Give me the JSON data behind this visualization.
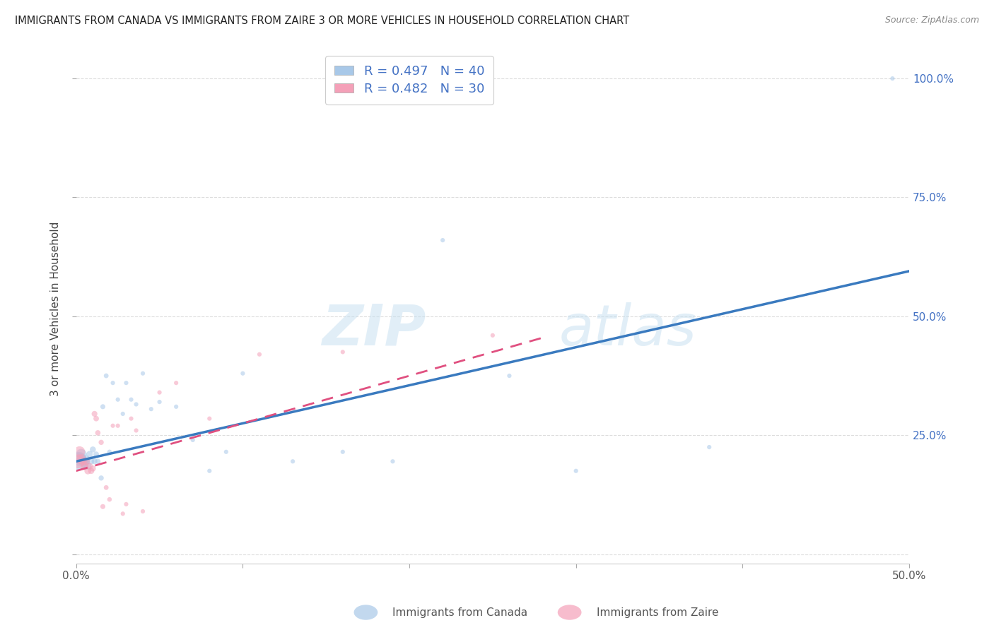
{
  "title": "IMMIGRANTS FROM CANADA VS IMMIGRANTS FROM ZAIRE 3 OR MORE VEHICLES IN HOUSEHOLD CORRELATION CHART",
  "source": "Source: ZipAtlas.com",
  "ylabel": "3 or more Vehicles in Household",
  "legend_canada": "Immigrants from Canada",
  "legend_zaire": "Immigrants from Zaire",
  "R_canada": 0.497,
  "N_canada": 40,
  "R_zaire": 0.482,
  "N_zaire": 30,
  "canada_color": "#a8c8e8",
  "zaire_color": "#f4a0b8",
  "canada_line_color": "#3a7abf",
  "zaire_line_color": "#e05080",
  "xlim": [
    0.0,
    0.5
  ],
  "ylim": [
    -0.02,
    1.05
  ],
  "canada_x": [
    0.001,
    0.002,
    0.003,
    0.004,
    0.005,
    0.006,
    0.006,
    0.007,
    0.008,
    0.009,
    0.01,
    0.011,
    0.012,
    0.013,
    0.015,
    0.016,
    0.018,
    0.02,
    0.022,
    0.025,
    0.028,
    0.03,
    0.033,
    0.036,
    0.04,
    0.045,
    0.05,
    0.06,
    0.07,
    0.08,
    0.09,
    0.1,
    0.13,
    0.16,
    0.19,
    0.22,
    0.26,
    0.3,
    0.38,
    0.49
  ],
  "canada_y": [
    0.195,
    0.2,
    0.21,
    0.195,
    0.19,
    0.2,
    0.195,
    0.185,
    0.21,
    0.195,
    0.22,
    0.195,
    0.21,
    0.195,
    0.16,
    0.31,
    0.375,
    0.215,
    0.36,
    0.325,
    0.295,
    0.36,
    0.325,
    0.315,
    0.38,
    0.305,
    0.32,
    0.31,
    0.24,
    0.175,
    0.215,
    0.38,
    0.195,
    0.215,
    0.195,
    0.66,
    0.375,
    0.175,
    0.225,
    1.0
  ],
  "canada_size": [
    350,
    200,
    120,
    90,
    70,
    60,
    55,
    50,
    45,
    40,
    38,
    35,
    32,
    30,
    28,
    26,
    24,
    22,
    20,
    20,
    20,
    20,
    20,
    20,
    20,
    20,
    20,
    20,
    20,
    20,
    20,
    20,
    20,
    20,
    20,
    20,
    20,
    20,
    20,
    20
  ],
  "zaire_x": [
    0.001,
    0.002,
    0.003,
    0.004,
    0.005,
    0.006,
    0.007,
    0.008,
    0.009,
    0.01,
    0.011,
    0.012,
    0.013,
    0.015,
    0.016,
    0.018,
    0.02,
    0.022,
    0.025,
    0.028,
    0.03,
    0.033,
    0.036,
    0.04,
    0.05,
    0.06,
    0.08,
    0.11,
    0.16,
    0.25
  ],
  "zaire_y": [
    0.195,
    0.215,
    0.2,
    0.195,
    0.185,
    0.195,
    0.175,
    0.185,
    0.175,
    0.18,
    0.295,
    0.285,
    0.255,
    0.235,
    0.1,
    0.14,
    0.115,
    0.27,
    0.27,
    0.085,
    0.105,
    0.285,
    0.26,
    0.09,
    0.34,
    0.36,
    0.285,
    0.42,
    0.425,
    0.46
  ],
  "zaire_size": [
    200,
    130,
    100,
    80,
    65,
    55,
    50,
    45,
    40,
    38,
    35,
    32,
    30,
    28,
    26,
    24,
    22,
    20,
    20,
    20,
    20,
    20,
    20,
    20,
    20,
    20,
    20,
    20,
    20,
    20
  ],
  "canada_trendline": [
    0.0,
    0.5,
    0.195,
    0.595
  ],
  "zaire_trendline": [
    0.0,
    0.28,
    0.175,
    0.455
  ],
  "watermark_zip": "ZIP",
  "watermark_atlas": "atlas",
  "background_color": "#ffffff",
  "grid_color": "#dddddd"
}
